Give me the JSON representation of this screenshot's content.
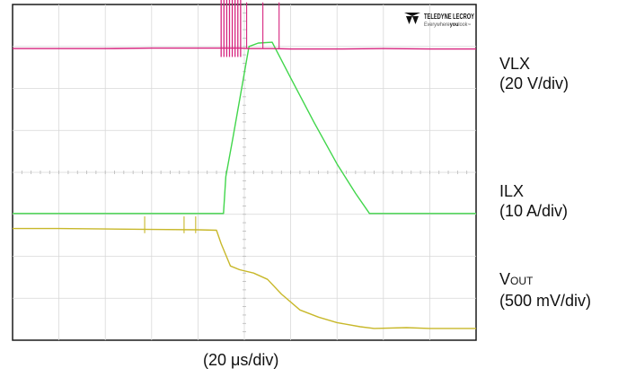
{
  "brand": {
    "name": "TELEDYNE LECROY",
    "tagline_prefix": "Everywhere",
    "tagline_emphasis": "you",
    "tagline_suffix": "look",
    "tm": "™",
    "logo_icon": "teledyne-chevron-icon"
  },
  "channels": {
    "vlx": {
      "name": "VLX",
      "scale": "(20 V/div)"
    },
    "ilx": {
      "name": "ILX",
      "scale": "(10 A/div)"
    },
    "vout": {
      "name_main": "V",
      "name_sub": "OUT",
      "scale": "(500 mV/div)"
    }
  },
  "timebase": "(20 μs/div)",
  "chart_data": {
    "type": "line",
    "grid": true,
    "x_divisions": 10,
    "y_divisions": 8,
    "xlim": [
      0,
      10
    ],
    "ylim": [
      0,
      8
    ],
    "series": [
      {
        "key": "vlx",
        "color": "#d6237e",
        "x": [
          0,
          1,
          2,
          3,
          4,
          4.45,
          4.6,
          4.9,
          5.1,
          5.6,
          6,
          7,
          8,
          9,
          10
        ],
        "y": [
          6.95,
          6.95,
          6.95,
          6.96,
          6.96,
          6.96,
          6.96,
          6.96,
          6.95,
          6.95,
          6.94,
          6.94,
          6.95,
          6.94,
          6.94
        ]
      },
      {
        "key": "ilx",
        "color": "#41d64b",
        "x": [
          0,
          1,
          2,
          3,
          4,
          4.55,
          4.6,
          4.75,
          4.95,
          5.1,
          5.3,
          5.6,
          6,
          6.5,
          7,
          7.4,
          7.7,
          8,
          9,
          10
        ],
        "y": [
          3.02,
          3.02,
          3.02,
          3.02,
          3.02,
          3.02,
          3.9,
          4.8,
          6.05,
          7.0,
          7.08,
          7.1,
          6.25,
          5.2,
          4.2,
          3.5,
          3.02,
          3.02,
          3.02,
          3.02
        ]
      },
      {
        "key": "vout",
        "color": "#c8b82a",
        "x": [
          0,
          1,
          2,
          3,
          4,
          4.4,
          4.5,
          4.7,
          4.9,
          5.2,
          5.5,
          5.8,
          6.2,
          6.6,
          7,
          7.5,
          7.8,
          8.5,
          9,
          10
        ],
        "y": [
          2.66,
          2.66,
          2.65,
          2.64,
          2.63,
          2.62,
          2.3,
          1.77,
          1.68,
          1.6,
          1.45,
          1.1,
          0.72,
          0.55,
          0.42,
          0.32,
          0.28,
          0.3,
          0.28,
          0.28
        ]
      }
    ],
    "spikes": {
      "vlx_cluster": {
        "x": [
          4.5,
          4.56,
          4.62,
          4.68,
          4.74,
          4.8,
          4.86,
          4.92
        ],
        "top": 8.2,
        "bottom": 6.75
      },
      "vlx_after": {
        "x": [
          5.05,
          5.4,
          5.75
        ],
        "top": 8.05,
        "bottom": 6.95
      },
      "vout_glitches": {
        "x": [
          2.85,
          3.7,
          3.95
        ],
        "top": 2.95,
        "bottom": 2.55
      }
    }
  }
}
